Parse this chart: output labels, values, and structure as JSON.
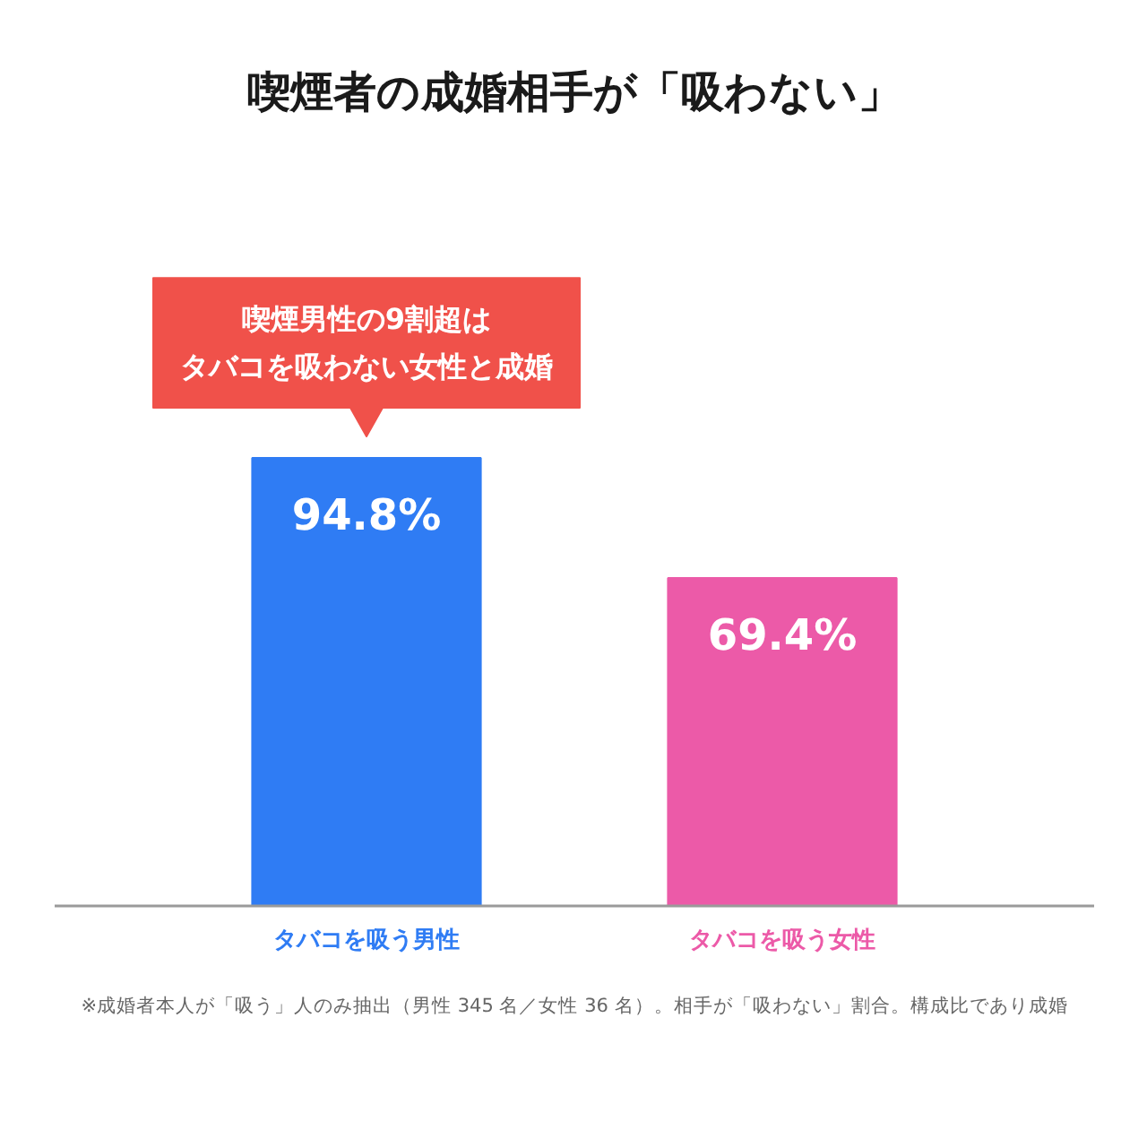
{
  "chart_data": {
    "type": "bar",
    "title": "喫煙者の成婚相手が「吸わない」",
    "categories": [
      "タバコを吸う男性",
      "タバコを吸う女性"
    ],
    "values": [
      94.8,
      69.4
    ],
    "colors": [
      "#2f7cf4",
      "#ec5aa8"
    ],
    "value_labels": [
      "94.8%",
      "69.4%"
    ],
    "annotations": [
      "喫煙男性の9割超はタバコを吸わない女性と成婚",
      "※成婚者本人が「吸う」人のみ抽出（男性 345 名／女性 36 名）。相手が「吸わない」割合。構成比であり成婚"
    ],
    "grid": false
  }
}
